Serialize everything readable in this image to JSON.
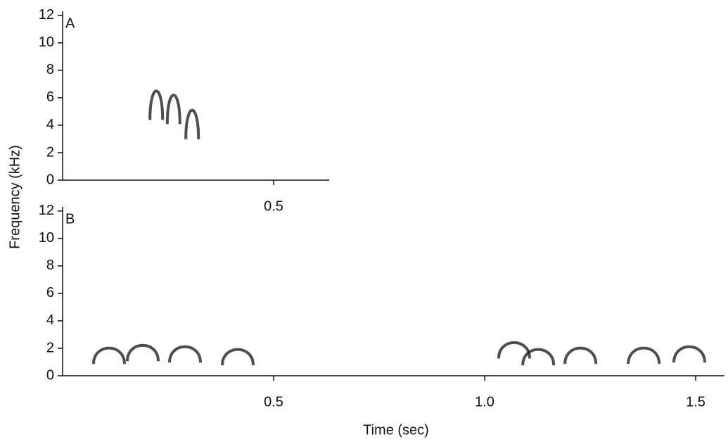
{
  "chart_data": [
    {
      "type": "spectrogram",
      "panel_label": "A",
      "x": [
        0.222,
        0.263,
        0.307
      ],
      "values": [
        7.2,
        6.9,
        5.8
      ],
      "color": "#222222",
      "xlim": [
        0,
        0.632
      ],
      "xticks": [
        0.5
      ],
      "ylim": [
        0,
        12.3
      ],
      "yticks": [
        0,
        2,
        4,
        6,
        8,
        10,
        12
      ]
    },
    {
      "type": "spectrogram",
      "panel_label": "B",
      "x": [
        0.11,
        0.19,
        0.29,
        0.415,
        1.07,
        1.127,
        1.227,
        1.377,
        1.485
      ],
      "values": [
        2.4,
        2.6,
        2.5,
        2.3,
        2.8,
        2.3,
        2.4,
        2.4,
        2.5
      ],
      "color": "#222222",
      "xlim": [
        0,
        1.568
      ],
      "xticks": [
        0.5,
        {
          "value": 1,
          "label": "1.0"
        },
        1.5
      ],
      "ylim": [
        0,
        12.3
      ],
      "yticks": [
        0,
        2,
        4,
        6,
        8,
        10,
        12
      ],
      "xlabel": "Time (sec)",
      "ylabel": "Frequency (kHz)"
    }
  ]
}
